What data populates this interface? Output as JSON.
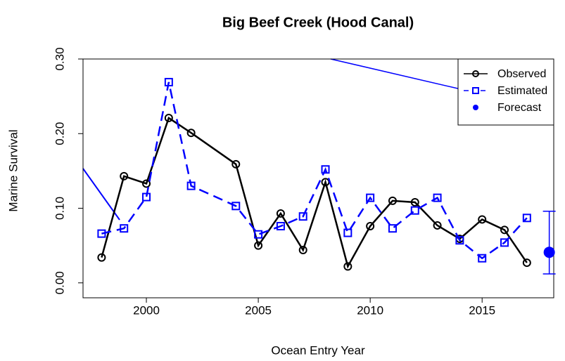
{
  "chart_data": {
    "type": "line",
    "title": "Big Beef Creek (Hood Canal)",
    "x_label": "Ocean Entry Year",
    "y_label": "Marine Survival",
    "xlim": [
      1997.17,
      2018.2
    ],
    "ylim": [
      -0.02,
      0.3
    ],
    "xticks": [
      2000,
      2005,
      2010,
      2015
    ],
    "yticks": [
      {
        "value": 0,
        "label": "0.00"
      },
      {
        "value": 0.1,
        "label": "0.10"
      },
      {
        "value": 0.2,
        "label": "0.20"
      },
      {
        "value": 0.3,
        "label": "0.30"
      }
    ],
    "legend": "top-right",
    "series": [
      {
        "name": "Observed",
        "color": "#000000",
        "marker": "circle",
        "dash": false,
        "x": [
          1998,
          1999,
          2000,
          2001,
          2002,
          2004,
          2005,
          2006,
          2007,
          2008,
          2009,
          2010,
          2011,
          2012,
          2013,
          2014,
          2015,
          2016,
          2017
        ],
        "values": [
          0.034,
          0.143,
          0.133,
          0.221,
          0.201,
          0.159,
          0.05,
          0.093,
          0.044,
          0.135,
          0.022,
          0.076,
          0.11,
          0.108,
          0.077,
          0.059,
          0.085,
          0.071,
          0.027
        ]
      },
      {
        "name": "Estimated",
        "color": "#0000ff",
        "marker": "square",
        "dash": true,
        "x": [
          1998,
          1999,
          2000,
          2001,
          2002,
          2004,
          2005,
          2006,
          2007,
          2008,
          2009,
          2010,
          2011,
          2012,
          2013,
          2014,
          2015,
          2016,
          2017
        ],
        "values": [
          0.066,
          0.073,
          0.115,
          0.269,
          0.13,
          0.103,
          0.065,
          0.076,
          0.089,
          0.152,
          0.067,
          0.114,
          0.073,
          0.097,
          0.114,
          0.057,
          0.033,
          0.054,
          0.087
        ]
      },
      {
        "name": "Forecast",
        "color": "#0000ff",
        "marker": "dot",
        "dash": false,
        "x": [
          2018
        ],
        "values": [
          0.041
        ],
        "lower": [
          0.012
        ],
        "upper": [
          0.096
        ]
      }
    ]
  }
}
